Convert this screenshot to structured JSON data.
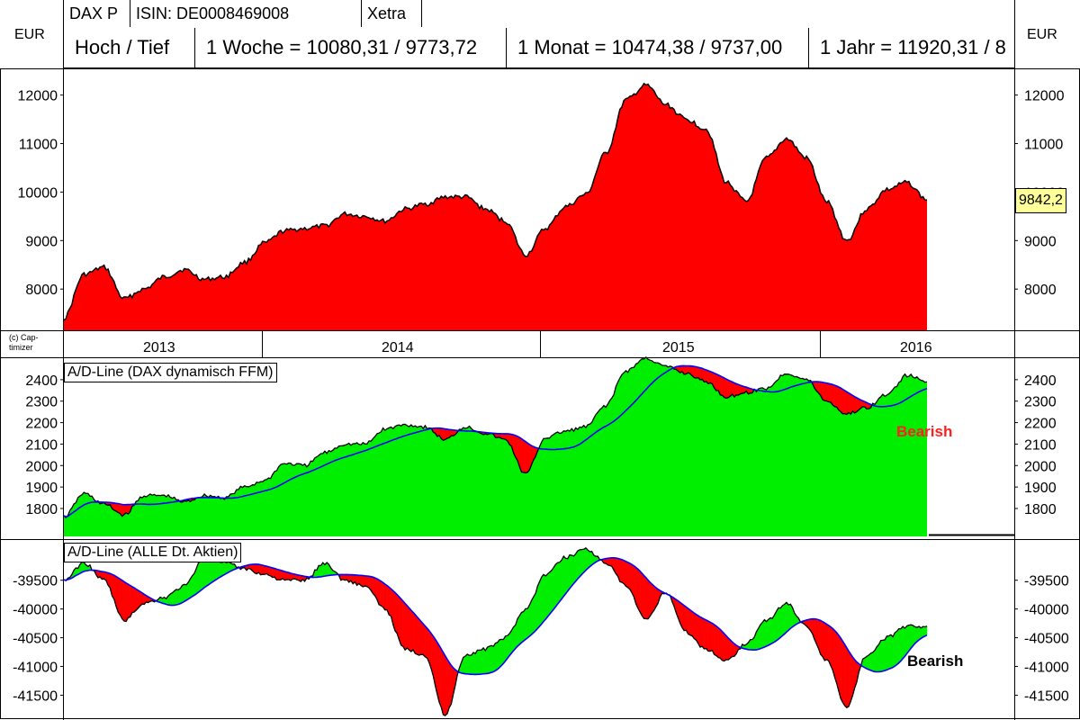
{
  "header": {
    "ticker": "DAX P",
    "isin": "ISIN: DE0008469008",
    "exchange": "Xetra",
    "currency_left": "EUR",
    "currency_right": "EUR",
    "range_label": "Hoch / Tief",
    "week": "1 Woche = 10080,31 / 9773,72",
    "month": "1 Monat = 10474,38 / 9737,00",
    "year": "1 Jahr = 11920,31 / 8"
  },
  "copyright": "(c) Cap-\ntimizer",
  "x_years": [
    "2013",
    "2014",
    "2015",
    "2016"
  ],
  "colors": {
    "price_fill": "#ff0000",
    "ad_green": "#00ee00",
    "ad_red": "#ff0000",
    "ma_line": "#0000ff",
    "price_badge": "#ffff99",
    "bearish_red": "#ff2020",
    "bearish_dark": "#000000"
  },
  "chart_data": [
    {
      "type": "area",
      "title": "",
      "ylabel": "EUR",
      "ylim": [
        7150,
        12550
      ],
      "yticks": [
        8000,
        9000,
        10000,
        11000,
        12000
      ],
      "last_price": "9842,2",
      "series": [
        {
          "x": [
            "2012-11",
            "2012-12",
            "2013-01",
            "2013-02",
            "2013-03",
            "2013-04",
            "2013-05",
            "2013-06",
            "2013-07",
            "2013-08",
            "2013-09",
            "2013-10",
            "2013-11",
            "2013-12",
            "2014-01",
            "2014-02",
            "2014-03",
            "2014-04",
            "2014-05",
            "2014-06",
            "2014-07",
            "2014-08",
            "2014-09",
            "2014-10",
            "2014-11",
            "2014-12",
            "2015-01",
            "2015-02",
            "2015-03",
            "2015-04",
            "2015-05",
            "2015-06",
            "2015-07",
            "2015-08",
            "2015-09",
            "2015-10",
            "2015-11",
            "2015-12",
            "2016-01",
            "2016-02",
            "2016-03",
            "2016-04",
            "2016-05",
            "2016-06"
          ],
          "values": [
            7400,
            8300,
            8450,
            7800,
            8000,
            8250,
            8400,
            8200,
            8250,
            8550,
            8950,
            9200,
            9250,
            9300,
            9550,
            9500,
            9400,
            9650,
            9750,
            9900,
            9900,
            9650,
            9400,
            8700,
            9250,
            9700,
            9950,
            10800,
            11900,
            12200,
            11800,
            11500,
            11300,
            10200,
            9800,
            10700,
            11100,
            10700,
            9800,
            9000,
            9650,
            10050,
            10200,
            9840
          ]
        }
      ]
    },
    {
      "type": "area",
      "title": "A/D-Line (DAX dynamisch FFM)",
      "ylim": [
        1670,
        2500
      ],
      "yticks": [
        1800,
        1900,
        2000,
        2100,
        2200,
        2300,
        2400
      ],
      "annotation": "Bearish",
      "series": [
        {
          "x": [
            "2012-11",
            "2012-12",
            "2013-01",
            "2013-02",
            "2013-03",
            "2013-04",
            "2013-05",
            "2013-06",
            "2013-07",
            "2013-08",
            "2013-09",
            "2013-10",
            "2013-11",
            "2013-12",
            "2014-01",
            "2014-02",
            "2014-03",
            "2014-04",
            "2014-05",
            "2014-06",
            "2014-07",
            "2014-08",
            "2014-09",
            "2014-10",
            "2014-11",
            "2014-12",
            "2015-01",
            "2015-02",
            "2015-03",
            "2015-04",
            "2015-05",
            "2015-06",
            "2015-07",
            "2015-08",
            "2015-09",
            "2015-10",
            "2015-11",
            "2015-12",
            "2016-01",
            "2016-02",
            "2016-03",
            "2016-04",
            "2016-05",
            "2016-06"
          ],
          "values": [
            1760,
            1870,
            1820,
            1770,
            1860,
            1860,
            1830,
            1860,
            1850,
            1900,
            1930,
            2010,
            2000,
            2060,
            2100,
            2100,
            2170,
            2190,
            2180,
            2120,
            2180,
            2150,
            2120,
            1960,
            2130,
            2160,
            2180,
            2280,
            2440,
            2500,
            2460,
            2430,
            2390,
            2320,
            2340,
            2360,
            2430,
            2400,
            2300,
            2240,
            2270,
            2330,
            2420,
            2390
          ]
        }
      ]
    },
    {
      "type": "area",
      "title": "A/D-Line (ALLE Dt. Aktien)",
      "ylim": [
        -41900,
        -38800
      ],
      "yticks": [
        -39500,
        -40000,
        -40500,
        -41000,
        -41500
      ],
      "annotation": "Bearish",
      "series": [
        {
          "x": [
            "2012-11",
            "2012-12",
            "2013-01",
            "2013-02",
            "2013-03",
            "2013-04",
            "2013-05",
            "2013-06",
            "2013-07",
            "2013-08",
            "2013-09",
            "2013-10",
            "2013-11",
            "2013-12",
            "2014-01",
            "2014-02",
            "2014-03",
            "2014-04",
            "2014-05",
            "2014-06",
            "2014-07",
            "2014-08",
            "2014-09",
            "2014-10",
            "2014-11",
            "2014-12",
            "2015-01",
            "2015-02",
            "2015-03",
            "2015-04",
            "2015-05",
            "2015-06",
            "2015-07",
            "2015-08",
            "2015-09",
            "2015-10",
            "2015-11",
            "2015-12",
            "2016-01",
            "2016-02",
            "2016-03",
            "2016-04",
            "2016-05",
            "2016-06"
          ],
          "values": [
            -39500,
            -39200,
            -39500,
            -40200,
            -39900,
            -39800,
            -39600,
            -39100,
            -39200,
            -39300,
            -39400,
            -39500,
            -39500,
            -39200,
            -39500,
            -39600,
            -40000,
            -40700,
            -40800,
            -41850,
            -40800,
            -40700,
            -40500,
            -40000,
            -39400,
            -39100,
            -38950,
            -39200,
            -39600,
            -40200,
            -39700,
            -40400,
            -40700,
            -40900,
            -40600,
            -40200,
            -39900,
            -40300,
            -40900,
            -41700,
            -40800,
            -40500,
            -40300,
            -40300
          ]
        }
      ]
    }
  ]
}
